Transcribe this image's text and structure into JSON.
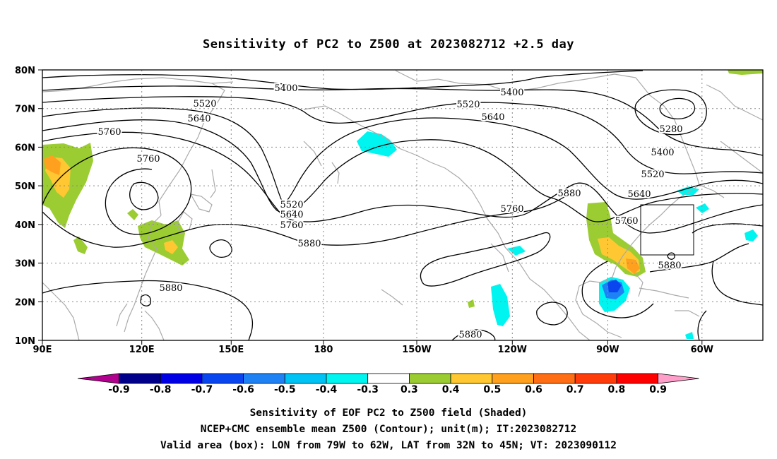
{
  "title": "Sensitivity of PC2 to Z500 at 2023082712 +2.5 day",
  "map": {
    "lat_labels": [
      "80N",
      "70N",
      "60N",
      "50N",
      "40N",
      "30N",
      "20N",
      "10N"
    ],
    "lon_labels": [
      "90E",
      "120E",
      "150E",
      "180",
      "150W",
      "120W",
      "90W",
      "60W"
    ],
    "contour_labels": [
      {
        "text": "5400"
      },
      {
        "text": "5400"
      },
      {
        "text": "5520"
      },
      {
        "text": "5520"
      },
      {
        "text": "5640"
      },
      {
        "text": "5640"
      },
      {
        "text": "5760"
      },
      {
        "text": "5760"
      },
      {
        "text": "5280"
      },
      {
        "text": "5400"
      },
      {
        "text": "5520"
      },
      {
        "text": "5880"
      },
      {
        "text": "5520"
      },
      {
        "text": "5640"
      },
      {
        "text": "5760"
      },
      {
        "text": "5880"
      },
      {
        "text": "5760"
      },
      {
        "text": "5640"
      },
      {
        "text": "5760"
      },
      {
        "text": "5880"
      },
      {
        "text": "5880"
      },
      {
        "text": "5880"
      }
    ]
  },
  "colorbar": {
    "labels": [
      "-0.9",
      "-0.8",
      "-0.7",
      "-0.6",
      "-0.5",
      "-0.4",
      "-0.3",
      "0.3",
      "0.4",
      "0.5",
      "0.6",
      "0.7",
      "0.8",
      "0.9"
    ],
    "colors": [
      "#b2008f",
      "#00008b",
      "#0000e6",
      "#0a46f0",
      "#1e82f5",
      "#00c3f5",
      "#00f5f0",
      "#ffffff",
      "#9bcd32",
      "#ffc832",
      "#ffa01e",
      "#ff6e14",
      "#ff3c0a",
      "#ff0000",
      "#ff9ec8"
    ]
  },
  "footer": {
    "line1": "Sensitivity of EOF PC2 to Z500 field (Shaded)",
    "line2": "NCEP+CMC ensemble mean Z500 (Contour); unit(m); IT:2023082712",
    "line3": "Valid area (box): LON from 79W to 62W, LAT from 32N to 45N; VT: 2023090112"
  }
}
